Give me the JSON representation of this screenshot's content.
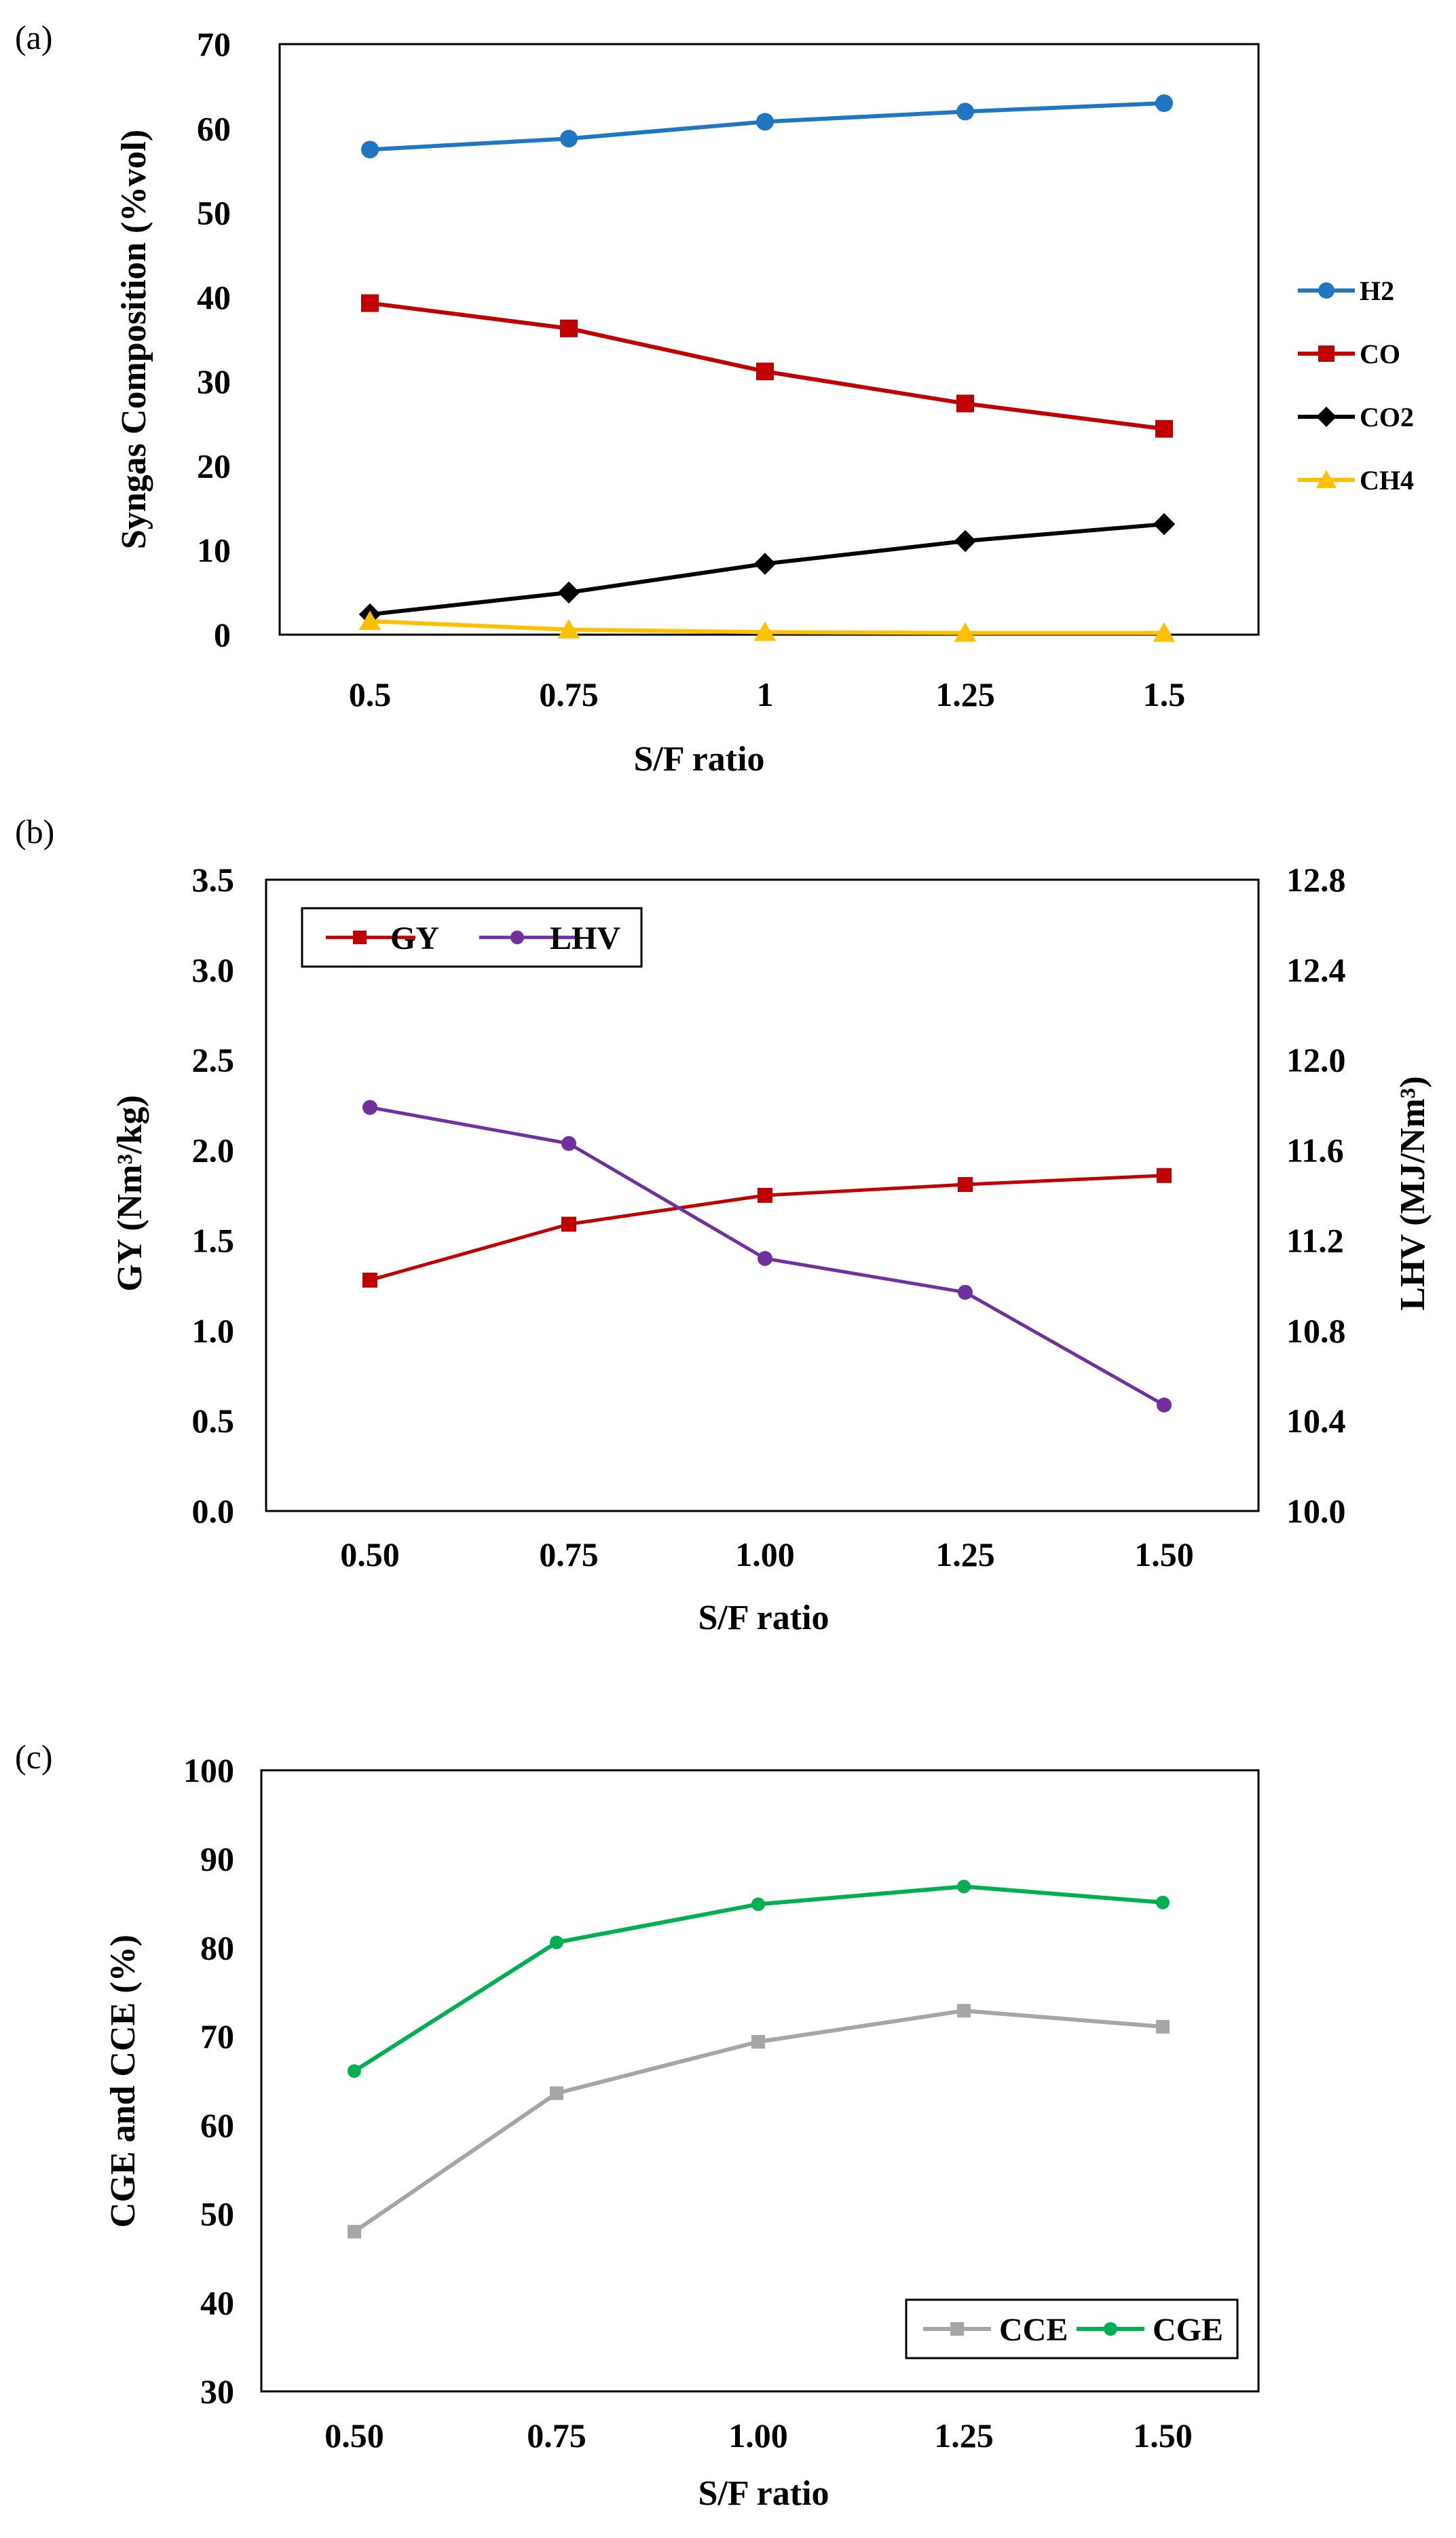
{
  "chart_data": [
    {
      "panel_label": "(a)",
      "type": "line",
      "xlabel": "S/F ratio",
      "ylabel": "Syngas Composition (%vol)",
      "categories": [
        "0.5",
        "0.75",
        "1",
        "1.25",
        "1.5"
      ],
      "ylim": [
        0,
        70
      ],
      "yticks": [
        "0",
        "10",
        "20",
        "30",
        "40",
        "50",
        "60",
        "70"
      ],
      "legend_position": "right",
      "series": [
        {
          "name": "H2",
          "color": "#1f77c4",
          "marker": "circle",
          "values": [
            57.5,
            58.8,
            60.8,
            62.0,
            63.0
          ]
        },
        {
          "name": "CO",
          "color": "#c00000",
          "marker": "square",
          "values": [
            39.3,
            36.3,
            31.2,
            27.4,
            24.4
          ]
        },
        {
          "name": "CO2",
          "color": "#000000",
          "marker": "diamond",
          "values": [
            2.4,
            5.0,
            8.4,
            11.1,
            13.1
          ]
        },
        {
          "name": "CH4",
          "color": "#ffc000",
          "marker": "triangle",
          "values": [
            1.6,
            0.6,
            0.3,
            0.2,
            0.2
          ]
        }
      ]
    },
    {
      "panel_label": "(b)",
      "type": "line",
      "xlabel": "S/F ratio",
      "ylabel_left": "GY (Nm³/kg)",
      "ylabel_right": "LHV (MJ/Nm³)",
      "categories": [
        "0.50",
        "0.75",
        "1.00",
        "1.25",
        "1.50"
      ],
      "ylim_left": [
        0,
        3.5
      ],
      "yticks_left": [
        "0.0",
        "0.5",
        "1.0",
        "1.5",
        "2.0",
        "2.5",
        "3.0",
        "3.5"
      ],
      "ylim_right": [
        10.0,
        12.8
      ],
      "yticks_right": [
        "10.0",
        "10.4",
        "10.8",
        "11.2",
        "11.6",
        "12.0",
        "12.4",
        "12.8"
      ],
      "legend_position": "top-left",
      "series": [
        {
          "name": "GY",
          "color": "#c00000",
          "marker": "square",
          "axis": "left",
          "values": [
            1.28,
            1.59,
            1.75,
            1.81,
            1.86
          ]
        },
        {
          "name": "LHV",
          "color": "#7030a0",
          "marker": "circle",
          "axis": "right",
          "values": [
            11.79,
            11.63,
            11.12,
            10.97,
            10.47
          ]
        }
      ]
    },
    {
      "panel_label": "(c)",
      "type": "line",
      "xlabel": "S/F ratio",
      "ylabel": "CGE and CCE (%)",
      "categories": [
        "0.50",
        "0.75",
        "1.00",
        "1.25",
        "1.50"
      ],
      "ylim": [
        30,
        100
      ],
      "yticks": [
        "30",
        "40",
        "50",
        "60",
        "70",
        "80",
        "90",
        "100"
      ],
      "legend_position": "bottom-right",
      "series": [
        {
          "name": "CCE",
          "color": "#a6a6a6",
          "marker": "square",
          "values": [
            48.0,
            63.6,
            69.4,
            72.9,
            71.1
          ]
        },
        {
          "name": "CGE",
          "color": "#00b050",
          "marker": "circle",
          "values": [
            66.1,
            80.6,
            84.9,
            86.9,
            85.1
          ]
        }
      ]
    }
  ]
}
